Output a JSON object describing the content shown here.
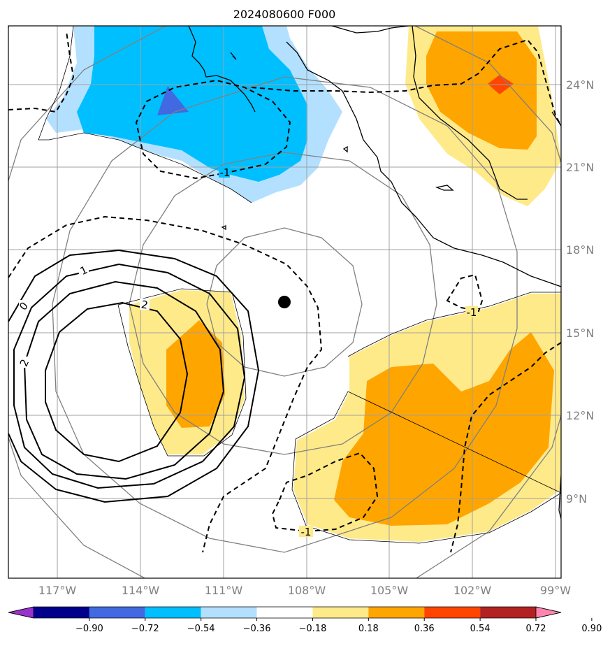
{
  "title": "2024080600 F000",
  "lon_labels": [
    "117°W",
    "114°W",
    "111°W",
    "108°W",
    "105°W",
    "102°W",
    "99°W"
  ],
  "lat_labels": [
    "24°N",
    "21°N",
    "18°N",
    "15°N",
    "12°N",
    "9°N"
  ],
  "contour_labels": {
    "c1": "1",
    "c0": "0",
    "c2a": "2",
    "c2b": "2",
    "cn1_top": "-1",
    "cn1_right": "-1",
    "cn1_bottom": "-1"
  },
  "colorbar": {
    "ticks": [
      "−0.90",
      "−0.72",
      "−0.54",
      "−0.36",
      "−0.18",
      "0.18",
      "0.36",
      "0.54",
      "0.72",
      "0.90"
    ],
    "colors": [
      "#9932cc",
      "#00008b",
      "#4169e1",
      "#00bfff",
      "#b3e0ff",
      "#ffffff",
      "#ffea8a",
      "#ffa500",
      "#ff4500",
      "#b22222",
      "#ff85b0"
    ]
  },
  "colors": {
    "blue_light": "#b3e0ff",
    "blue": "#00bfff",
    "blue_dark": "#4169e1",
    "yellow": "#ffea8a",
    "orange": "#ffa500",
    "red_orange": "#ff4500",
    "grid": "#a0a0a0",
    "coast": "#000000",
    "circle": "#808080",
    "storm_marker": "#000000"
  },
  "storm_center_icon": "filled-circle"
}
